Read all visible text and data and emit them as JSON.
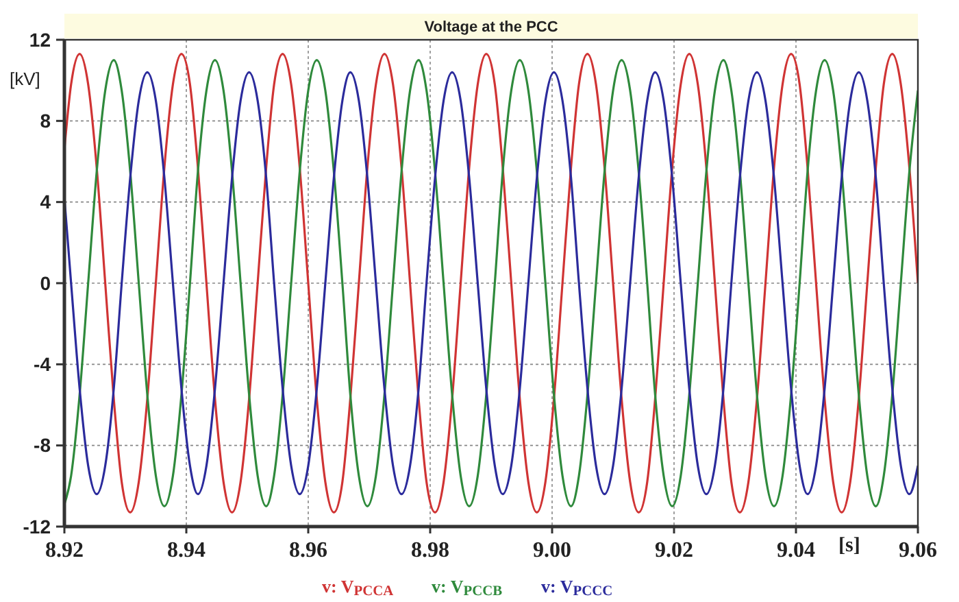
{
  "chart_data": {
    "type": "line",
    "title": "Voltage at the PCC",
    "ylabel": "[kV]",
    "xlabel": "[s]",
    "x": [
      8.92,
      8.9211,
      8.9225,
      8.9239,
      8.9253,
      8.9267,
      8.9281,
      8.9294,
      8.9308,
      8.9322,
      8.9336,
      8.935,
      8.9364,
      8.9378,
      8.9392,
      8.9406,
      8.9419,
      8.9433,
      8.9447,
      8.9461,
      8.9475,
      8.9489,
      8.9503,
      8.9517,
      8.9531,
      8.9544,
      8.9558,
      8.9572,
      8.9586,
      8.96,
      8.9614,
      8.9628,
      8.9642,
      8.9656,
      8.9669,
      8.9683,
      8.9697,
      8.9711,
      8.9725,
      8.9739,
      8.9753,
      8.9767,
      8.9781,
      8.9794,
      8.9808,
      8.9822,
      8.9836,
      8.985,
      8.9864,
      8.9878,
      8.9892,
      8.9906,
      8.9919,
      8.9933,
      8.9947,
      8.9961,
      8.9975,
      8.9989,
      9.0003,
      9.0017,
      9.0031,
      9.0044,
      9.0058,
      9.0072,
      9.0086,
      9.01,
      9.0114,
      9.0128,
      9.0142,
      9.0156,
      9.0169,
      9.0183,
      9.0197,
      9.0211,
      9.0225,
      9.0239,
      9.0253,
      9.0267,
      9.0281,
      9.0294,
      9.0308,
      9.0322,
      9.0336,
      9.035,
      9.0364,
      9.0378,
      9.0392,
      9.0406,
      9.0419,
      9.0433,
      9.0447,
      9.0461,
      9.0475,
      9.0489,
      9.0503,
      9.0517,
      9.0531,
      9.0544,
      9.0558,
      9.0572,
      9.0586,
      9.06
    ],
    "series": [
      {
        "name": "v: V$_{PCCA}$",
        "color": "#d03434",
        "values": [
          6.6,
          9.8,
          11.3,
          9.8,
          5.7,
          0,
          -5.7,
          -9.8,
          -11.3,
          -9.8,
          -5.7,
          0,
          5.7,
          9.8,
          11.3,
          9.8,
          5.7,
          0,
          -5.7,
          -9.8,
          -11.3,
          -9.8,
          -5.7,
          0,
          5.7,
          9.8,
          11.3,
          9.8,
          5.7,
          0,
          -5.7,
          -9.8,
          -11.3,
          -9.8,
          -5.7,
          0,
          5.7,
          9.8,
          11.3,
          9.8,
          5.7,
          0,
          -5.7,
          -9.8,
          -11.3,
          -9.8,
          -5.7,
          0,
          5.7,
          9.8,
          11.3,
          9.8,
          5.7,
          0,
          -5.7,
          -9.8,
          -11.3,
          -9.8,
          -5.7,
          0,
          5.7,
          9.8,
          11.3,
          9.8,
          5.7,
          0,
          -5.7,
          -9.8,
          -11.3,
          -9.8,
          -5.7,
          0,
          5.7,
          9.8,
          11.3,
          9.8,
          5.7,
          0,
          -5.7,
          -9.8,
          -11.3,
          -9.8,
          -5.7,
          0,
          5.7,
          9.8,
          11.3,
          9.8,
          5.7,
          0,
          -5.7,
          -9.8,
          -11.3,
          -9.8,
          -5.7,
          0,
          5.7,
          9.8,
          11.3,
          9.8,
          5.7,
          0
        ]
      },
      {
        "name": "v: V$_{PCCB}$",
        "color": "#2f8a3c",
        "values": [
          -10.9,
          -9.5,
          -5.5,
          0,
          5.5,
          9.5,
          11,
          9.5,
          5.5,
          0,
          -5.5,
          -9.5,
          -11,
          -9.5,
          -5.5,
          0,
          5.5,
          9.5,
          11,
          9.5,
          5.5,
          0,
          -5.5,
          -9.5,
          -11,
          -9.5,
          -5.5,
          0,
          5.5,
          9.5,
          11,
          9.5,
          5.5,
          0,
          -5.5,
          -9.5,
          -11,
          -9.5,
          -5.5,
          0,
          5.5,
          9.5,
          11,
          9.5,
          5.5,
          0,
          -5.5,
          -9.5,
          -11,
          -9.5,
          -5.5,
          0,
          5.5,
          9.5,
          11,
          9.5,
          5.5,
          0,
          -5.5,
          -9.5,
          -11,
          -9.5,
          -5.5,
          0,
          5.5,
          9.5,
          11,
          9.5,
          5.5,
          0,
          -5.5,
          -9.5,
          -11,
          -9.5,
          -5.5,
          0,
          5.5,
          9.5,
          11,
          9.5,
          5.5,
          0,
          -5.5,
          -9.5,
          -11,
          -9.5,
          -5.5,
          0,
          5.5,
          9.5,
          11,
          9.5,
          5.5,
          0,
          -5.5,
          -9.5,
          -11,
          -9.5,
          -5.5,
          0,
          5.5,
          9.5
        ]
      },
      {
        "name": "v: V$_{PCCC}$",
        "color": "#2b2b9c",
        "values": [
          4.2,
          0,
          -5.2,
          -9,
          -10.4,
          -9,
          -5.2,
          0,
          5.2,
          9,
          10.4,
          9,
          5.2,
          0,
          -5.2,
          -9,
          -10.4,
          -9,
          -5.2,
          0,
          5.2,
          9,
          10.4,
          9,
          5.2,
          0,
          -5.2,
          -9,
          -10.4,
          -9,
          -5.2,
          0,
          5.2,
          9,
          10.4,
          9,
          5.2,
          0,
          -5.2,
          -9,
          -10.4,
          -9,
          -5.2,
          0,
          5.2,
          9,
          10.4,
          9,
          5.2,
          0,
          -5.2,
          -9,
          -10.4,
          -9,
          -5.2,
          0,
          5.2,
          9,
          10.4,
          9,
          5.2,
          0,
          -5.2,
          -9,
          -10.4,
          -9,
          -5.2,
          0,
          5.2,
          9,
          10.4,
          9,
          5.2,
          0,
          -5.2,
          -9,
          -10.4,
          -9,
          -5.2,
          0,
          5.2,
          9,
          10.4,
          9,
          5.2,
          0,
          -5.2,
          -9,
          -10.4,
          -9,
          -5.2,
          0,
          5.2,
          9,
          10.4,
          9,
          5.2,
          0,
          -5.2,
          -9,
          -10.4,
          -9
        ]
      }
    ],
    "xlim": [
      8.92,
      9.06
    ],
    "xticks": [
      8.92,
      8.94,
      8.96,
      8.98,
      {
        "value": 9,
        "label": "9.00"
      },
      9.02,
      9.04,
      9.06
    ],
    "ylim": [
      -12,
      12
    ],
    "yticks": [
      -12,
      -8,
      -4,
      0,
      4,
      8,
      12
    ],
    "grid": true,
    "legend": "bottom",
    "line_style": "solid",
    "marker": "none"
  }
}
